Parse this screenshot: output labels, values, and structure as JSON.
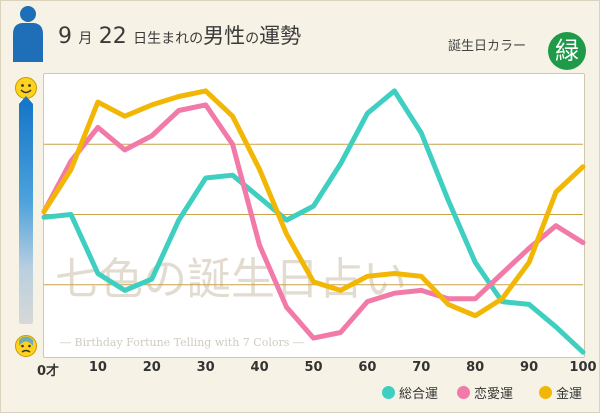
{
  "header": {
    "month": "9",
    "month_unit": "月",
    "day": "22",
    "day_unit": "日生まれの",
    "gender": "男性",
    "connector": "の",
    "topic": "運勢",
    "birth_color_label": "誕生日カラー",
    "birth_color_char": "緑",
    "birth_color_hex": "#1e9a49"
  },
  "watermark": {
    "main": "七色の誕生日占い",
    "sub": "― Birthday Fortune Telling with 7 Colors ―"
  },
  "colors": {
    "sougou": "#3fcfc0",
    "renai": "#f27aa8",
    "kinun": "#f2b705",
    "grid": "#c9a24a",
    "gauge_top": "#1676c7"
  },
  "icons": {
    "top": "smile-face-icon",
    "bottom": "worried-face-icon",
    "person": "male-silhouette-icon"
  },
  "chart_data": {
    "type": "line",
    "x_tick_labels": [
      "0才",
      "10",
      "20",
      "30",
      "40",
      "50",
      "60",
      "70",
      "80",
      "90",
      "100"
    ],
    "x_ticks": [
      0,
      10,
      20,
      30,
      40,
      50,
      60,
      70,
      80,
      90,
      100
    ],
    "xlim": [
      0,
      100
    ],
    "ylim": [
      0,
      100
    ],
    "grid": "horizontal",
    "legend_position": "bottom-right",
    "x": [
      0,
      5,
      10,
      15,
      20,
      25,
      30,
      35,
      40,
      45,
      50,
      55,
      60,
      65,
      70,
      75,
      80,
      85,
      90,
      95,
      100
    ],
    "series": [
      {
        "name": "総合運",
        "color_key": "sougou",
        "values": [
          49,
          50,
          29,
          23,
          27,
          48,
          63,
          64,
          56,
          48,
          53,
          68,
          86,
          94,
          79,
          55,
          33,
          19,
          18,
          10,
          1
        ]
      },
      {
        "name": "恋愛運",
        "color_key": "renai",
        "values": [
          51,
          69,
          81,
          73,
          78,
          87,
          89,
          75,
          39,
          17,
          6,
          8,
          19,
          22,
          23,
          20,
          20,
          29,
          38,
          46,
          40
        ]
      },
      {
        "name": "金運",
        "color_key": "kinun",
        "values": [
          51,
          66,
          90,
          85,
          89,
          92,
          94,
          85,
          66,
          43,
          26,
          23,
          28,
          29,
          28,
          18,
          14,
          20,
          33,
          58,
          67
        ]
      }
    ]
  }
}
